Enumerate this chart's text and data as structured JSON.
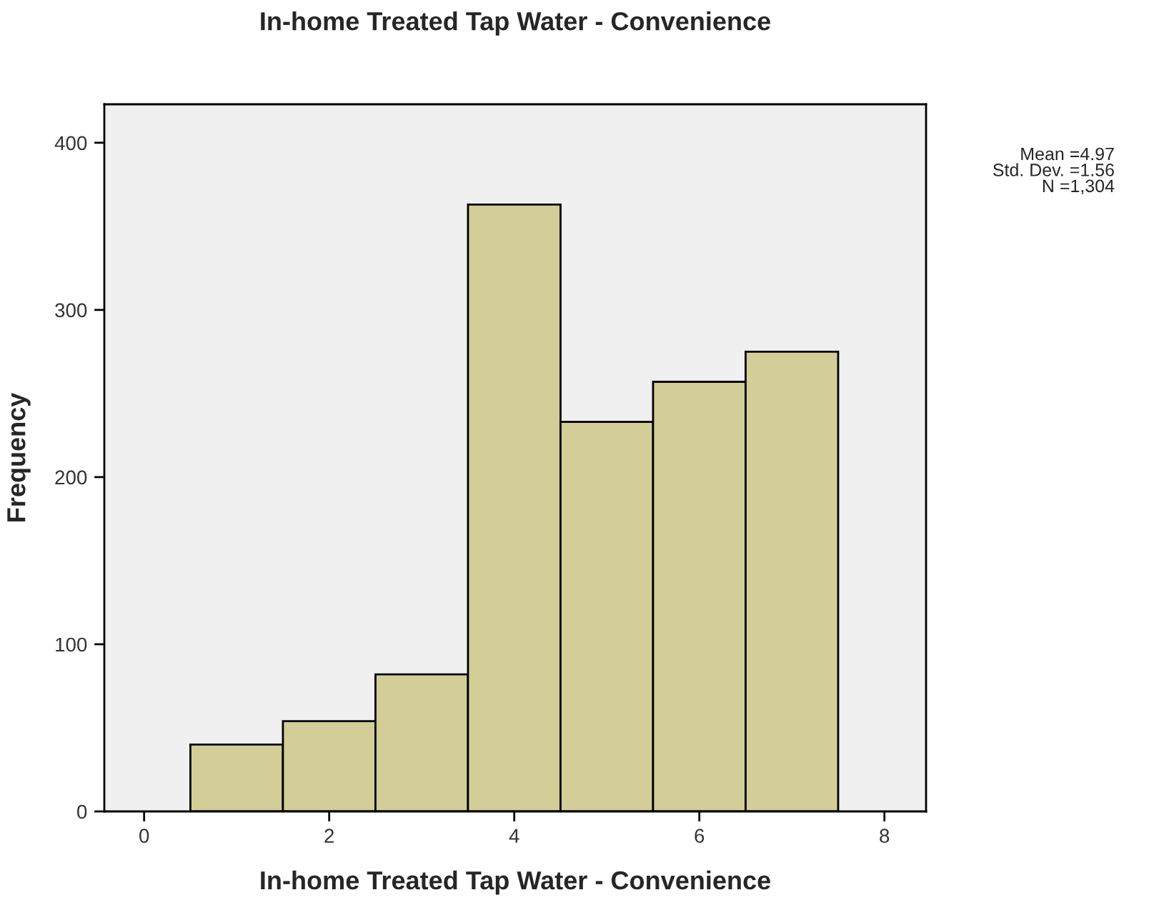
{
  "chart_data": {
    "type": "histogram",
    "title": "In-home Treated Tap Water - Convenience",
    "xlabel": "In-home Treated Tap Water - Convenience",
    "ylabel": "Frequency",
    "bins": [
      0.5,
      1.5,
      2.5,
      3.5,
      4.5,
      5.5,
      6.5,
      7.5
    ],
    "values": [
      40,
      54,
      82,
      363,
      233,
      257,
      275
    ],
    "color": "#d3ce98",
    "xlim": [
      -0.43,
      8.45
    ],
    "xticks": [
      0,
      2,
      4,
      6,
      8
    ],
    "ylim": [
      0,
      423
    ],
    "yticks": [
      0,
      100,
      200,
      300,
      400
    ],
    "grid": false,
    "annotations": [
      "Mean =4.97\nStd. Dev. =1.56\nN =1,304"
    ]
  }
}
